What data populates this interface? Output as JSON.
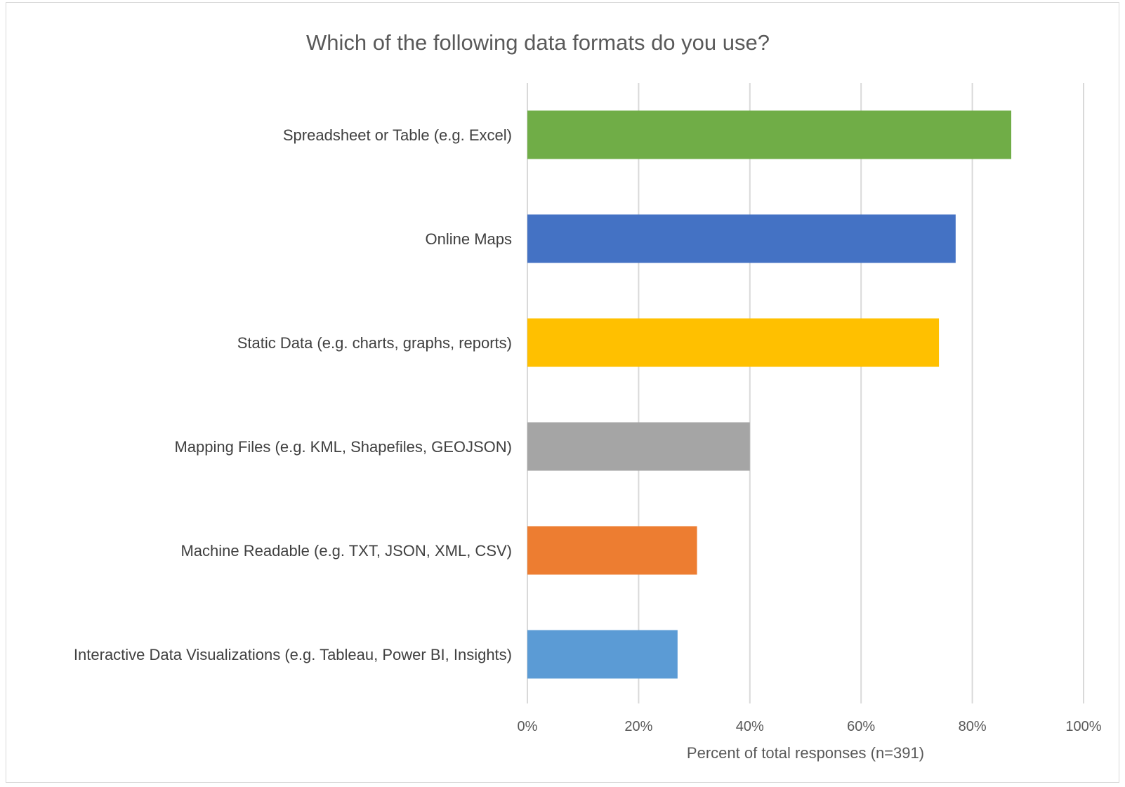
{
  "chart_data": {
    "type": "bar",
    "orientation": "horizontal",
    "title": "Which of the following data formats do you use?",
    "xlabel": "Percent of total responses (n=391)",
    "ylabel": "",
    "xlim": [
      0,
      100
    ],
    "tick_values": [
      0,
      20,
      40,
      60,
      80,
      100
    ],
    "tick_labels": [
      "0%",
      "20%",
      "40%",
      "60%",
      "80%",
      "100%"
    ],
    "grid": true,
    "legend": "none",
    "categories": [
      "Spreadsheet or Table (e.g. Excel)",
      "Online Maps",
      "Static Data (e.g. charts, graphs, reports)",
      "Mapping Files (e.g. KML, Shapefiles, GEOJSON)",
      "Machine Readable (e.g. TXT, JSON, XML, CSV)",
      "Interactive Data Visualizations (e.g. Tableau, Power BI, Insights)"
    ],
    "values": [
      87,
      77,
      74,
      40,
      30.5,
      27
    ],
    "colors": [
      "#70ad47",
      "#4472c4",
      "#ffc000",
      "#a5a5a5",
      "#ed7d31",
      "#5b9bd5"
    ]
  },
  "colors": {
    "gridline": "#d9d9d9",
    "frame": "#d9d9d9"
  }
}
